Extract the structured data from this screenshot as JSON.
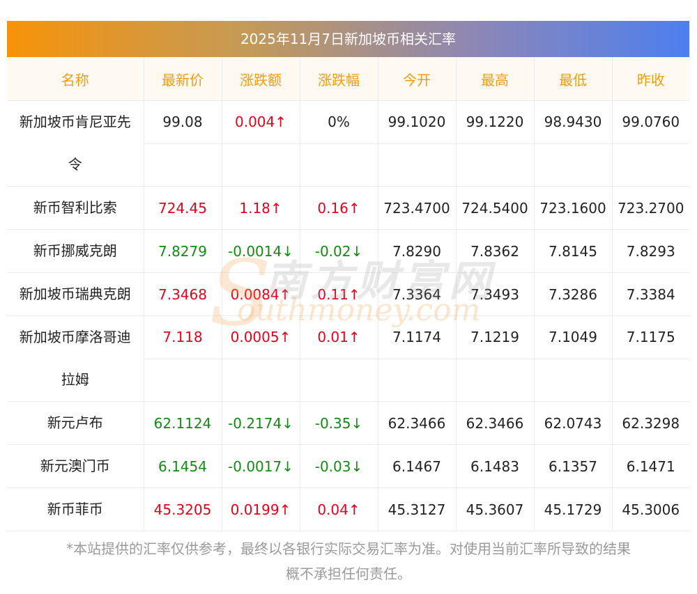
{
  "title": "2025年11月7日新加坡币相关汇率",
  "columns": [
    "名称",
    "最新价",
    "涨跌额",
    "涨跌幅",
    "今开",
    "最高",
    "最低",
    "昨收"
  ],
  "rows": [
    {
      "name_line1": "新加坡币肯尼亚先",
      "name_line2": "令",
      "latest": "99.08",
      "change": "0.004↑",
      "pct": "0%",
      "open": "99.1020",
      "high": "99.1220",
      "low": "98.9430",
      "prev": "99.0760",
      "latest_dir": "flat",
      "change_dir": "up",
      "pct_dir": "flat"
    },
    {
      "name": "新币智利比索",
      "latest": "724.45",
      "change": "1.18↑",
      "pct": "0.16↑",
      "open": "723.4700",
      "high": "724.5400",
      "low": "723.1600",
      "prev": "723.2700",
      "latest_dir": "up",
      "change_dir": "up",
      "pct_dir": "up"
    },
    {
      "name": "新币挪威克朗",
      "latest": "7.8279",
      "change": "-0.0014↓",
      "pct": "-0.02↓",
      "open": "7.8290",
      "high": "7.8362",
      "low": "7.8145",
      "prev": "7.8293",
      "latest_dir": "down",
      "change_dir": "down",
      "pct_dir": "down"
    },
    {
      "name": "新加坡币瑞典克朗",
      "latest": "7.3468",
      "change": "0.0084↑",
      "pct": "0.11↑",
      "open": "7.3364",
      "high": "7.3493",
      "low": "7.3286",
      "prev": "7.3384",
      "latest_dir": "up",
      "change_dir": "up",
      "pct_dir": "up"
    },
    {
      "name_line1": "新加坡币摩洛哥迪",
      "name_line2": "拉姆",
      "latest": "7.118",
      "change": "0.0005↑",
      "pct": "0.01↑",
      "open": "7.1174",
      "high": "7.1219",
      "low": "7.1049",
      "prev": "7.1175",
      "latest_dir": "up",
      "change_dir": "up",
      "pct_dir": "up"
    },
    {
      "name": "新元卢布",
      "latest": "62.1124",
      "change": "-0.2174↓",
      "pct": "-0.35↓",
      "open": "62.3466",
      "high": "62.3466",
      "low": "62.0743",
      "prev": "62.3298",
      "latest_dir": "down",
      "change_dir": "down",
      "pct_dir": "down"
    },
    {
      "name": "新元澳门币",
      "latest": "6.1454",
      "change": "-0.0017↓",
      "pct": "-0.03↓",
      "open": "6.1467",
      "high": "6.1483",
      "low": "6.1357",
      "prev": "6.1471",
      "latest_dir": "down",
      "change_dir": "down",
      "pct_dir": "down"
    },
    {
      "name": "新币菲币",
      "latest": "45.3205",
      "change": "0.0199↑",
      "pct": "0.04↑",
      "open": "45.3127",
      "high": "45.3607",
      "low": "45.1729",
      "prev": "45.3006",
      "latest_dir": "up",
      "change_dir": "up",
      "pct_dir": "up"
    }
  ],
  "disclaimer_line1": "*本站提供的汇率仅供参考，最终以各银行实际交易汇率为准。对使用当前汇率所导致的结果",
  "disclaimer_line2": "概不承担任何责任。",
  "watermark": {
    "cn": "南方财富网",
    "en": "outhmoney.com",
    "s": "S"
  },
  "colors": {
    "up": "#e8001c",
    "down": "#138a13",
    "header_text": "#f39c12",
    "header_bg": "#fef9f1"
  }
}
